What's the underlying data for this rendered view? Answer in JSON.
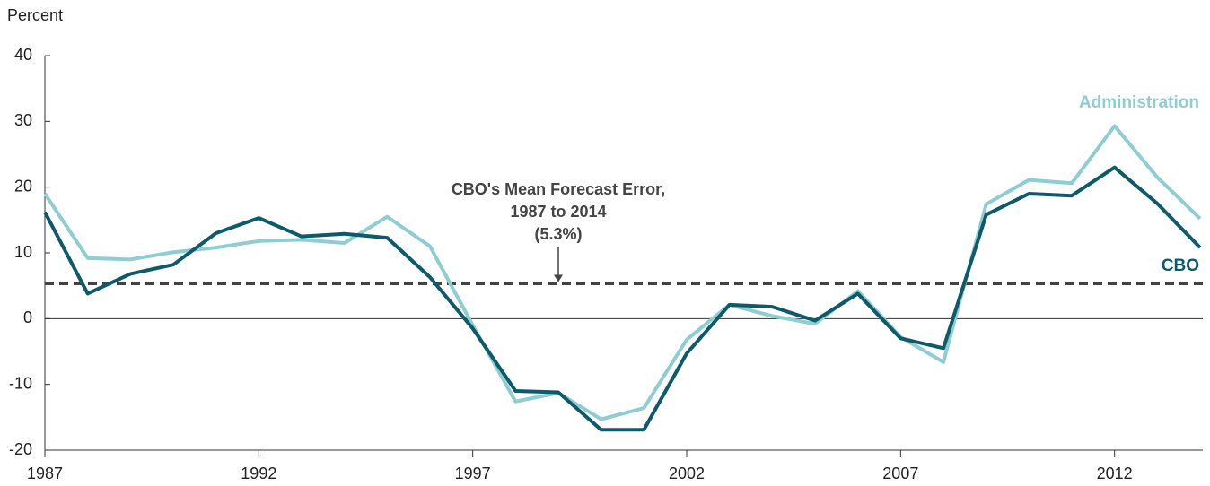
{
  "chart_data": {
    "type": "line",
    "y_label": "Percent",
    "x": [
      1987,
      1988,
      1989,
      1990,
      1991,
      1992,
      1993,
      1994,
      1995,
      1996,
      1997,
      1998,
      1999,
      2000,
      2001,
      2002,
      2003,
      2004,
      2005,
      2006,
      2007,
      2008,
      2009,
      2010,
      2011,
      2012,
      2013,
      2014
    ],
    "series": [
      {
        "name": "Administration",
        "color": "#8ecdd1",
        "values": [
          19.0,
          9.2,
          9.0,
          10.1,
          10.8,
          11.8,
          12.0,
          11.5,
          15.5,
          11.0,
          -1.0,
          -12.6,
          -11.3,
          -15.3,
          -13.6,
          -3.2,
          2.1,
          0.4,
          -0.8,
          4.2,
          -2.8,
          -6.6,
          17.4,
          21.1,
          20.6,
          29.3,
          21.5,
          15.2
        ]
      },
      {
        "name": "CBO",
        "color": "#0e5a6b",
        "values": [
          16.2,
          3.8,
          6.8,
          8.2,
          13.0,
          15.3,
          12.5,
          12.9,
          12.3,
          6.3,
          -1.5,
          -11.0,
          -11.2,
          -16.9,
          -16.9,
          -5.3,
          2.1,
          1.8,
          -0.3,
          3.8,
          -3.0,
          -4.5,
          15.8,
          19.0,
          18.7,
          23.0,
          17.5,
          10.8
        ]
      }
    ],
    "reference_line": {
      "value": 5.3,
      "color": "#444444",
      "x": 1999,
      "annotation": [
        "CBO's Mean Forecast Error,",
        "1987 to 2014",
        "(5.3%)"
      ]
    },
    "xlim": [
      1987,
      2014
    ],
    "xticks": [
      1987,
      1992,
      1997,
      2002,
      2007,
      2012
    ],
    "ylim": [
      -20,
      40
    ],
    "yticks": [
      -20,
      -10,
      0,
      10,
      20,
      30,
      40
    ]
  }
}
